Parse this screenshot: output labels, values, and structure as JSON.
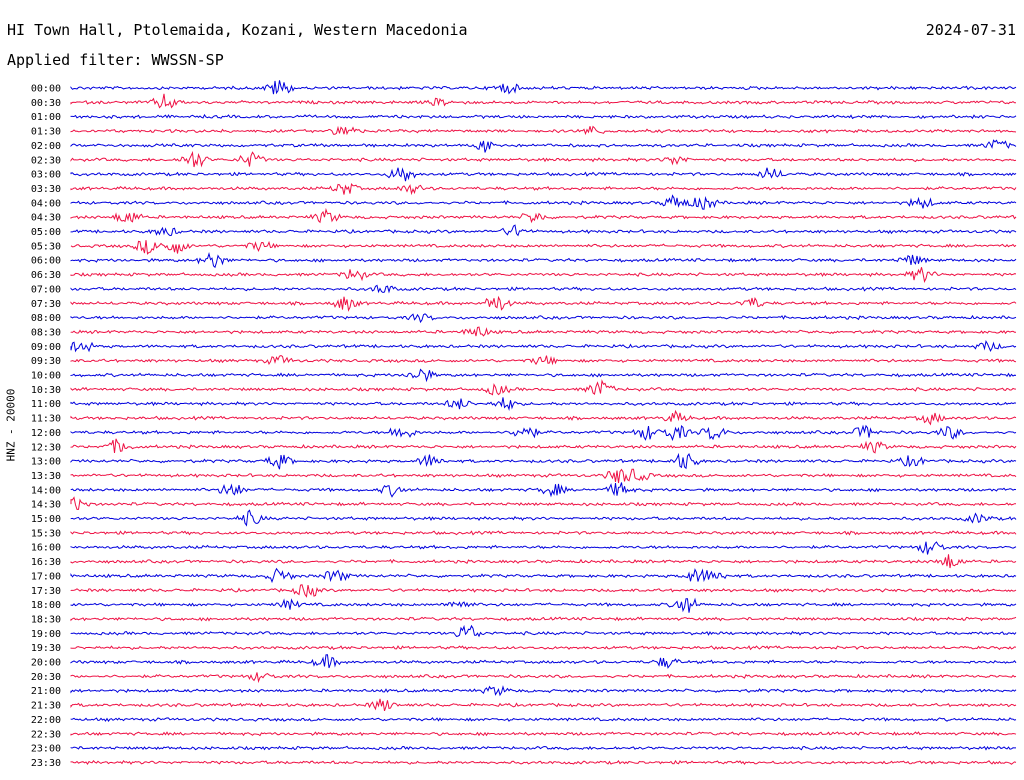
{
  "header": {
    "title": "HI Town Hall, Ptolemaida, Kozani, Western Macedonia",
    "date": "2024-07-31",
    "filter": "Applied filter: WWSSN-SP"
  },
  "y_axis_label": "HNZ - 20000",
  "colors": {
    "trace_a": "#0000dd",
    "trace_b": "#ee1144",
    "text": "#000000",
    "background": "#ffffff"
  },
  "rows": [
    {
      "time": "00:00",
      "color": "trace_a",
      "events": [
        [
          0.22,
          1.0
        ],
        [
          0.46,
          0.6
        ]
      ]
    },
    {
      "time": "00:30",
      "color": "trace_b",
      "events": [
        [
          0.1,
          0.9
        ],
        [
          0.39,
          0.4
        ]
      ]
    },
    {
      "time": "01:00",
      "color": "trace_a",
      "events": []
    },
    {
      "time": "01:30",
      "color": "trace_b",
      "events": [
        [
          0.29,
          0.7
        ],
        [
          0.55,
          0.5
        ]
      ]
    },
    {
      "time": "02:00",
      "color": "trace_a",
      "events": [
        [
          0.44,
          0.7
        ],
        [
          0.98,
          0.6
        ]
      ]
    },
    {
      "time": "02:30",
      "color": "trace_b",
      "events": [
        [
          0.13,
          1.0
        ],
        [
          0.19,
          0.8
        ],
        [
          0.64,
          0.5
        ]
      ]
    },
    {
      "time": "03:00",
      "color": "trace_a",
      "events": [
        [
          0.35,
          1.0
        ],
        [
          0.74,
          0.7
        ]
      ]
    },
    {
      "time": "03:30",
      "color": "trace_b",
      "events": [
        [
          0.29,
          0.7
        ],
        [
          0.36,
          0.5
        ]
      ]
    },
    {
      "time": "04:00",
      "color": "trace_a",
      "events": [
        [
          0.64,
          0.9
        ],
        [
          0.67,
          0.8
        ],
        [
          0.9,
          0.6
        ]
      ]
    },
    {
      "time": "04:30",
      "color": "trace_b",
      "events": [
        [
          0.06,
          0.8
        ],
        [
          0.27,
          0.7
        ],
        [
          0.49,
          0.6
        ]
      ]
    },
    {
      "time": "05:00",
      "color": "trace_a",
      "events": [
        [
          0.1,
          0.5
        ],
        [
          0.47,
          0.6
        ]
      ]
    },
    {
      "time": "05:30",
      "color": "trace_b",
      "events": [
        [
          0.08,
          0.8
        ],
        [
          0.11,
          0.9
        ],
        [
          0.2,
          0.5
        ]
      ]
    },
    {
      "time": "06:00",
      "color": "trace_a",
      "events": [
        [
          0.15,
          0.9
        ],
        [
          0.89,
          0.6
        ]
      ]
    },
    {
      "time": "06:30",
      "color": "trace_b",
      "events": [
        [
          0.3,
          0.7
        ],
        [
          0.9,
          0.8
        ]
      ]
    },
    {
      "time": "07:00",
      "color": "trace_a",
      "events": [
        [
          0.33,
          0.5
        ]
      ]
    },
    {
      "time": "07:30",
      "color": "trace_b",
      "events": [
        [
          0.29,
          0.8
        ],
        [
          0.45,
          1.0
        ],
        [
          0.72,
          0.6
        ]
      ]
    },
    {
      "time": "08:00",
      "color": "trace_a",
      "events": [
        [
          0.37,
          0.4
        ]
      ]
    },
    {
      "time": "08:30",
      "color": "trace_b",
      "events": [
        [
          0.43,
          0.6
        ]
      ]
    },
    {
      "time": "09:00",
      "color": "trace_a",
      "events": [
        [
          0.01,
          0.7
        ],
        [
          0.97,
          0.5
        ]
      ]
    },
    {
      "time": "09:30",
      "color": "trace_b",
      "events": [
        [
          0.22,
          0.5
        ],
        [
          0.5,
          0.5
        ]
      ]
    },
    {
      "time": "10:00",
      "color": "trace_a",
      "events": [
        [
          0.37,
          0.8
        ]
      ]
    },
    {
      "time": "10:30",
      "color": "trace_b",
      "events": [
        [
          0.56,
          1.0
        ],
        [
          0.45,
          0.6
        ]
      ]
    },
    {
      "time": "11:00",
      "color": "trace_a",
      "events": [
        [
          0.41,
          0.6
        ],
        [
          0.46,
          0.7
        ]
      ]
    },
    {
      "time": "11:30",
      "color": "trace_b",
      "events": [
        [
          0.64,
          0.6
        ],
        [
          0.91,
          0.6
        ]
      ]
    },
    {
      "time": "12:00",
      "color": "trace_a",
      "events": [
        [
          0.35,
          0.8
        ],
        [
          0.48,
          0.9
        ],
        [
          0.61,
          0.8
        ],
        [
          0.64,
          0.9
        ],
        [
          0.68,
          0.8
        ],
        [
          0.84,
          0.7
        ],
        [
          0.93,
          0.7
        ]
      ]
    },
    {
      "time": "12:30",
      "color": "trace_b",
      "events": [
        [
          0.05,
          0.8
        ],
        [
          0.85,
          0.6
        ]
      ]
    },
    {
      "time": "13:00",
      "color": "trace_a",
      "events": [
        [
          0.22,
          0.8
        ],
        [
          0.38,
          0.7
        ],
        [
          0.65,
          1.0
        ],
        [
          0.89,
          0.6
        ]
      ]
    },
    {
      "time": "13:30",
      "color": "trace_b",
      "events": [
        [
          0.58,
          0.9
        ],
        [
          0.6,
          0.6
        ]
      ]
    },
    {
      "time": "14:00",
      "color": "trace_a",
      "events": [
        [
          0.17,
          0.8
        ],
        [
          0.34,
          0.6
        ],
        [
          0.51,
          0.7
        ],
        [
          0.58,
          0.8
        ]
      ]
    },
    {
      "time": "14:30",
      "color": "trace_b",
      "events": [
        [
          0.005,
          0.7
        ]
      ]
    },
    {
      "time": "15:00",
      "color": "trace_a",
      "events": [
        [
          0.19,
          0.8
        ],
        [
          0.96,
          0.5
        ]
      ]
    },
    {
      "time": "15:30",
      "color": "trace_b",
      "events": []
    },
    {
      "time": "16:00",
      "color": "trace_a",
      "events": [
        [
          0.91,
          0.9
        ]
      ]
    },
    {
      "time": "16:30",
      "color": "trace_b",
      "events": [
        [
          0.93,
          0.8
        ]
      ]
    },
    {
      "time": "17:00",
      "color": "trace_a",
      "events": [
        [
          0.22,
          0.8
        ],
        [
          0.28,
          0.7
        ],
        [
          0.66,
          0.7
        ],
        [
          0.68,
          0.6
        ]
      ]
    },
    {
      "time": "17:30",
      "color": "trace_b",
      "events": [
        [
          0.25,
          0.8
        ]
      ]
    },
    {
      "time": "18:00",
      "color": "trace_a",
      "events": [
        [
          0.23,
          0.5
        ],
        [
          0.41,
          0.5
        ],
        [
          0.65,
          1.0
        ]
      ]
    },
    {
      "time": "18:30",
      "color": "trace_b",
      "events": []
    },
    {
      "time": "19:00",
      "color": "trace_a",
      "events": [
        [
          0.42,
          1.0
        ]
      ]
    },
    {
      "time": "19:30",
      "color": "trace_b",
      "events": []
    },
    {
      "time": "20:00",
      "color": "trace_a",
      "events": [
        [
          0.27,
          0.7
        ],
        [
          0.63,
          0.6
        ]
      ]
    },
    {
      "time": "20:30",
      "color": "trace_b",
      "events": [
        [
          0.2,
          0.5
        ]
      ]
    },
    {
      "time": "21:00",
      "color": "trace_a",
      "events": [
        [
          0.45,
          0.5
        ]
      ]
    },
    {
      "time": "21:30",
      "color": "trace_b",
      "events": [
        [
          0.33,
          0.7
        ]
      ]
    },
    {
      "time": "22:00",
      "color": "trace_a",
      "events": []
    },
    {
      "time": "22:30",
      "color": "trace_b",
      "events": []
    },
    {
      "time": "23:00",
      "color": "trace_a",
      "events": []
    },
    {
      "time": "23:30",
      "color": "trace_b",
      "events": []
    }
  ]
}
